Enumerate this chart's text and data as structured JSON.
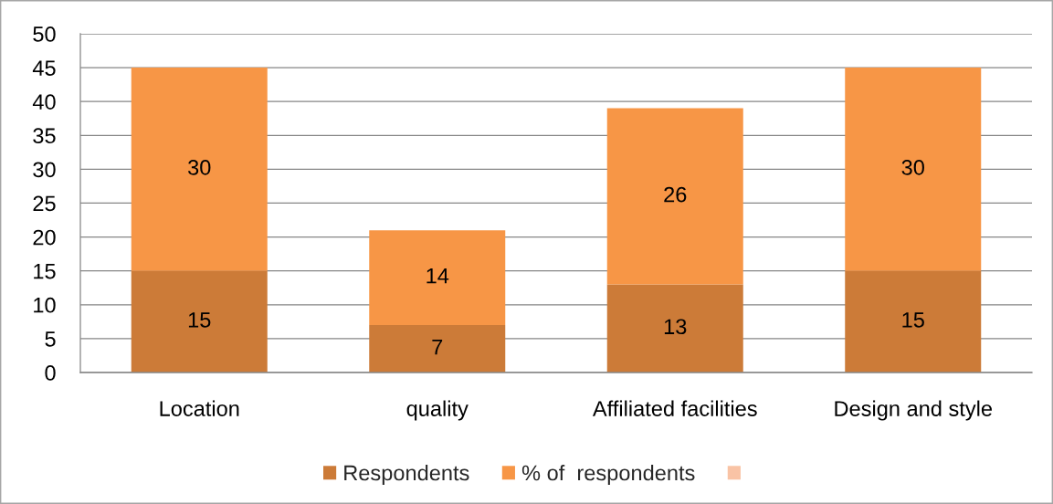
{
  "chart_data": {
    "type": "bar",
    "stacked": true,
    "categories": [
      "Location",
      "quality",
      "Affiliated facilities",
      "Design and style"
    ],
    "series": [
      {
        "name": "Respondents",
        "color": "#cc7b38",
        "values": [
          15,
          7,
          13,
          15
        ]
      },
      {
        "name": "% of  respondents",
        "color": "#f79646",
        "values": [
          30,
          14,
          26,
          30
        ]
      },
      {
        "color": "#f9c3a5",
        "values": [
          null,
          null,
          null,
          null
        ]
      }
    ],
    "ylim": [
      0,
      50
    ],
    "yticks": [
      0,
      5,
      10,
      15,
      20,
      25,
      30,
      35,
      40,
      45,
      50
    ],
    "grid": "y",
    "legend": "bottom",
    "data_labels": true
  }
}
